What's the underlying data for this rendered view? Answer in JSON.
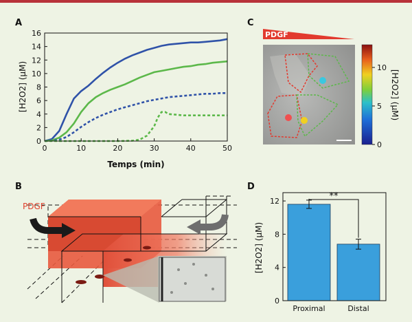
{
  "panels": {
    "a": "A",
    "b": "B",
    "c": "C",
    "d": "D"
  },
  "chart_data": [
    {
      "panel": "A",
      "type": "line",
      "xlabel": "Temps (min)",
      "ylabel": "[H2O2] (µM)",
      "xlim": [
        0,
        50
      ],
      "ylim": [
        0,
        16
      ],
      "xticks": [
        "0",
        "10",
        "20",
        "30",
        "40",
        "50"
      ],
      "yticks": [
        "0",
        "2",
        "4",
        "6",
        "8",
        "10",
        "12",
        "14",
        "16"
      ],
      "series": [
        {
          "name": "blue-solid",
          "color": "#2f52a8",
          "dash": "solid",
          "x": [
            0,
            2,
            4,
            6,
            8,
            10,
            12,
            14,
            16,
            18,
            20,
            22,
            24,
            26,
            28,
            30,
            32,
            34,
            36,
            38,
            40,
            42,
            44,
            46,
            48,
            50
          ],
          "y": [
            0,
            0.3,
            1.5,
            4.0,
            6.3,
            7.4,
            8.2,
            9.2,
            10.1,
            10.9,
            11.6,
            12.2,
            12.7,
            13.1,
            13.5,
            13.8,
            14.1,
            14.3,
            14.4,
            14.5,
            14.6,
            14.6,
            14.7,
            14.8,
            14.9,
            15.1
          ]
        },
        {
          "name": "green-solid",
          "color": "#5cb84a",
          "dash": "solid",
          "x": [
            0,
            2,
            4,
            6,
            8,
            10,
            12,
            14,
            16,
            18,
            20,
            22,
            24,
            26,
            28,
            30,
            32,
            34,
            36,
            38,
            40,
            42,
            44,
            46,
            48,
            50
          ],
          "y": [
            0,
            0.1,
            0.5,
            1.3,
            2.6,
            4.3,
            5.6,
            6.5,
            7.1,
            7.6,
            8.0,
            8.4,
            8.9,
            9.4,
            9.8,
            10.2,
            10.4,
            10.6,
            10.8,
            11.0,
            11.1,
            11.3,
            11.4,
            11.6,
            11.7,
            11.8
          ]
        },
        {
          "name": "blue-dashed",
          "color": "#2f52a8",
          "dash": "dashed",
          "x": [
            0,
            2,
            4,
            6,
            8,
            10,
            12,
            14,
            16,
            18,
            20,
            22,
            24,
            26,
            28,
            30,
            32,
            34,
            36,
            38,
            40,
            42,
            44,
            46,
            48,
            50
          ],
          "y": [
            0,
            0.05,
            0.2,
            0.6,
            1.3,
            2.1,
            2.8,
            3.4,
            3.9,
            4.3,
            4.7,
            5.0,
            5.3,
            5.6,
            5.9,
            6.1,
            6.3,
            6.5,
            6.6,
            6.7,
            6.8,
            6.9,
            7.0,
            7.0,
            7.1,
            7.1
          ]
        },
        {
          "name": "green-dashed",
          "color": "#5cb84a",
          "dash": "dashed",
          "x": [
            0,
            10,
            20,
            24,
            26,
            28,
            30,
            31,
            32,
            33,
            34,
            36,
            38,
            40,
            42,
            44,
            46,
            48,
            50
          ],
          "y": [
            0,
            0,
            0,
            0.05,
            0.2,
            0.8,
            2.2,
            3.5,
            4.3,
            4.3,
            4.0,
            3.9,
            3.8,
            3.8,
            3.8,
            3.8,
            3.8,
            3.8,
            3.8
          ]
        }
      ]
    },
    {
      "panel": "D",
      "type": "bar",
      "categories": [
        "Proximal",
        "Distal"
      ],
      "values": [
        11.6,
        6.8
      ],
      "errors": [
        0.5,
        0.6
      ],
      "ylabel": "[H2O2] (µM)",
      "ylim": [
        0,
        13
      ],
      "yticks": [
        "0",
        "4",
        "8",
        "12"
      ],
      "significance": "**",
      "bar_color": "#3a9fdc"
    }
  ],
  "panel_b": {
    "label": "PDGF"
  },
  "panel_c": {
    "gradient_label": "PDGF",
    "colorbar_label": "[H2O2] (µM)",
    "colorbar_ticks": [
      "0",
      "5",
      "10"
    ],
    "colorbar_range": [
      0,
      13
    ]
  }
}
